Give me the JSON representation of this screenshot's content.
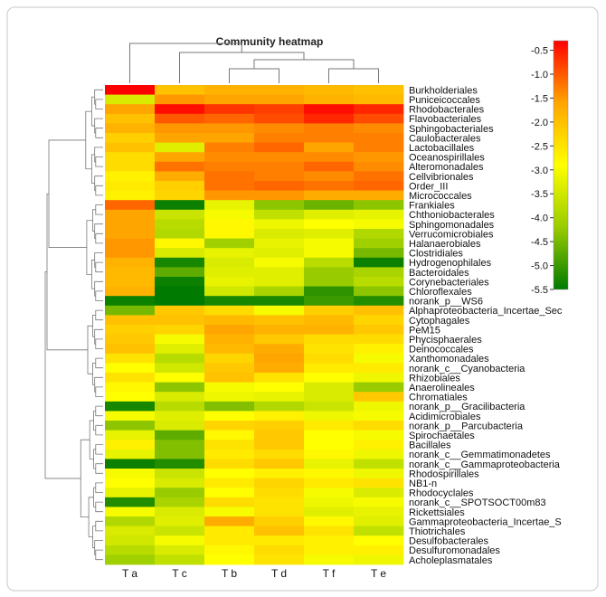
{
  "chart_data": {
    "type": "heatmap",
    "title": "Community heatmap",
    "columns": [
      "T a",
      "T c",
      "T b",
      "T d",
      "T f",
      "T e"
    ],
    "rows": [
      "Burkholderiales",
      "Puniceicoccales",
      "Rhodobacterales",
      "Flavobacteriales",
      "Sphingobacteriales",
      "Caulobacterales",
      "Lactobacillales",
      "Oceanospirillales",
      "Alteromonadales",
      "Cellvibrionales",
      "Order_III",
      "Micrococcales",
      "Frankiales",
      "Chthoniobacterales",
      "Sphingomonadales",
      "Verrucomicrobiales",
      "Halanaerobiales",
      "Clostridiales",
      "Hydrogenophilales",
      "Bacteroidales",
      "Corynebacteriales",
      "Chloroflexales",
      "norank_p__WS6",
      "Alphaproteobacteria_Incertae_Sec",
      "Cytophagales",
      "PeM15",
      "Phycisphaerales",
      "Deinococcales",
      "Xanthomonadales",
      "norank_c__Cyanobacteria",
      "Rhizobiales",
      "Anaerolineales",
      "Chromatiales",
      "norank_p__Gracilibacteria",
      "Acidimicrobiales",
      "norank_p__Parcubacteria",
      "Spirochaetales",
      "Bacillales",
      "norank_c__Gemmatimonadetes",
      "norank_c__Gammaproteobacteria",
      "Rhodospirillales",
      "NB1-n",
      "Rhodocyclales",
      "norank_c__SPOTSOCT00m83",
      "Rickettsiales",
      "Gammaproteobacteria_Incertae_S",
      "Thiotrichales",
      "Desulfobacterales",
      "Desulfuromonadales",
      "Acholeplasmatales"
    ],
    "values": [
      [
        -0.3,
        -2.0,
        -1.8,
        -1.8,
        -1.9,
        -2.0
      ],
      [
        -3.4,
        -1.5,
        -1.6,
        -1.6,
        -1.8,
        -1.9
      ],
      [
        -1.6,
        -0.4,
        -0.7,
        -0.8,
        -0.4,
        -0.6
      ],
      [
        -2.0,
        -1.0,
        -1.1,
        -0.9,
        -0.6,
        -0.9
      ],
      [
        -1.8,
        -1.5,
        -1.5,
        -1.4,
        -1.3,
        -1.4
      ],
      [
        -2.2,
        -1.6,
        -1.6,
        -1.3,
        -1.3,
        -1.3
      ],
      [
        -2.0,
        -3.3,
        -1.3,
        -1.1,
        -1.6,
        -1.3
      ],
      [
        -2.4,
        -1.6,
        -1.4,
        -1.4,
        -1.4,
        -1.5
      ],
      [
        -2.4,
        -1.2,
        -1.3,
        -1.3,
        -1.1,
        -1.4
      ],
      [
        -2.7,
        -1.7,
        -1.2,
        -1.3,
        -1.4,
        -1.2
      ],
      [
        -2.6,
        -2.2,
        -1.2,
        -1.1,
        -1.2,
        -1.1
      ],
      [
        -2.7,
        -2.3,
        -1.5,
        -1.5,
        -1.7,
        -1.7
      ],
      [
        -1.1,
        -5.4,
        -3.2,
        -4.3,
        -4.6,
        -4.3
      ],
      [
        -1.6,
        -3.6,
        -3.0,
        -3.7,
        -3.3,
        -3.2
      ],
      [
        -1.6,
        -3.8,
        -2.8,
        -3.1,
        -2.9,
        -3.0
      ],
      [
        -1.6,
        -3.9,
        -2.8,
        -3.4,
        -3.3,
        -3.9
      ],
      [
        -1.5,
        -2.8,
        -4.1,
        -3.2,
        -3.0,
        -4.1
      ],
      [
        -1.5,
        -3.4,
        -3.2,
        -3.3,
        -3.0,
        -4.5
      ],
      [
        -1.8,
        -5.3,
        -3.4,
        -3.0,
        -3.8,
        -5.4
      ],
      [
        -1.9,
        -4.7,
        -3.3,
        -3.3,
        -4.2,
        -4.0
      ],
      [
        -1.9,
        -5.4,
        -3.2,
        -3.3,
        -4.2,
        -3.8
      ],
      [
        -1.8,
        -5.5,
        -3.5,
        -4.0,
        -5.1,
        -4.3
      ],
      [
        -5.4,
        -5.5,
        -5.3,
        -5.3,
        -5.0,
        -5.2
      ],
      [
        -4.5,
        -2.1,
        -2.4,
        -3.0,
        -2.2,
        -2.0
      ],
      [
        -2.0,
        -2.0,
        -1.9,
        -2.0,
        -1.9,
        -2.3
      ],
      [
        -2.2,
        -2.3,
        -1.6,
        -1.8,
        -1.8,
        -2.1
      ],
      [
        -2.1,
        -3.0,
        -1.8,
        -2.1,
        -2.4,
        -2.4
      ],
      [
        -2.0,
        -3.3,
        -1.9,
        -1.7,
        -2.5,
        -2.7
      ],
      [
        -2.5,
        -3.8,
        -2.3,
        -1.6,
        -2.4,
        -3.0
      ],
      [
        -2.9,
        -3.5,
        -2.1,
        -1.7,
        -2.6,
        -2.6
      ],
      [
        -2.5,
        -2.9,
        -2.0,
        -2.5,
        -2.9,
        -3.1
      ],
      [
        -2.8,
        -4.3,
        -3.0,
        -2.9,
        -3.4,
        -4.2
      ],
      [
        -2.9,
        -3.4,
        -3.1,
        -3.2,
        -3.4,
        -2.1
      ],
      [
        -5.3,
        -3.8,
        -4.4,
        -3.9,
        -3.6,
        -3.1
      ],
      [
        -3.0,
        -3.3,
        -2.9,
        -2.7,
        -3.1,
        -3.0
      ],
      [
        -4.3,
        -3.4,
        -2.3,
        -2.2,
        -2.6,
        -2.4
      ],
      [
        -3.2,
        -4.7,
        -2.8,
        -2.1,
        -2.9,
        -3.0
      ],
      [
        -2.7,
        -4.4,
        -2.5,
        -2.1,
        -2.9,
        -2.7
      ],
      [
        -3.2,
        -4.4,
        -2.6,
        -2.4,
        -2.8,
        -3.1
      ],
      [
        -5.4,
        -5.2,
        -2.4,
        -2.1,
        -3.2,
        -3.7
      ],
      [
        -3.0,
        -3.6,
        -2.9,
        -2.7,
        -2.8,
        -3.1
      ],
      [
        -2.9,
        -3.4,
        -2.6,
        -2.3,
        -2.6,
        -2.5
      ],
      [
        -3.2,
        -4.2,
        -2.9,
        -2.4,
        -3.0,
        -3.4
      ],
      [
        -5.2,
        -4.0,
        -2.4,
        -2.5,
        -3.1,
        -3.0
      ],
      [
        -3.0,
        -3.4,
        -3.0,
        -2.5,
        -3.3,
        -3.2
      ],
      [
        -3.9,
        -3.3,
        -1.7,
        -2.2,
        -2.8,
        -3.3
      ],
      [
        -3.4,
        -3.6,
        -2.6,
        -2.0,
        -2.5,
        -3.7
      ],
      [
        -3.5,
        -3.0,
        -2.6,
        -2.6,
        -2.7,
        -2.9
      ],
      [
        -3.8,
        -3.4,
        -2.8,
        -2.4,
        -2.7,
        -2.7
      ],
      [
        -4.1,
        -3.7,
        -2.9,
        -2.5,
        -3.0,
        -3.1
      ]
    ],
    "colorbar": {
      "min": -5.5,
      "max": -0.3,
      "ticks": [
        "-0.5",
        "-1.0",
        "-1.5",
        "-2.0",
        "-2.5",
        "-3.0",
        "-3.5",
        "-4.0",
        "-4.5",
        "-5.0",
        "-5.5"
      ],
      "colors": [
        "#ff0000",
        "#ffa500",
        "#ffff00",
        "#99cc00",
        "#007a00"
      ]
    },
    "column_dendrogram": true,
    "row_dendrogram": true
  }
}
